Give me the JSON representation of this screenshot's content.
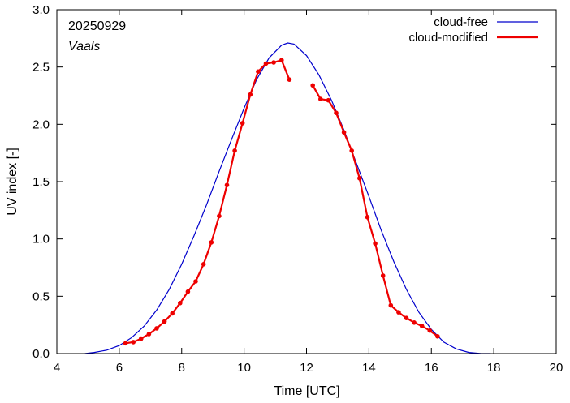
{
  "chart_data": {
    "type": "line",
    "title": "",
    "xlabel": "Time  [UTC]",
    "ylabel": "UV index  [-]",
    "xlim": [
      4,
      20
    ],
    "ylim": [
      0.0,
      3.0
    ],
    "x_ticks": [
      4,
      6,
      8,
      10,
      12,
      14,
      16,
      18,
      20
    ],
    "y_ticks": [
      0.0,
      0.5,
      1.0,
      1.5,
      2.0,
      2.5,
      3.0
    ],
    "x_tick_labels": [
      "4",
      "6",
      "8",
      "10",
      "12",
      "14",
      "16",
      "18",
      "20"
    ],
    "y_tick_labels": [
      "0.0",
      "0.5",
      "1.0",
      "1.5",
      "2.0",
      "2.5",
      "3.0"
    ],
    "annotations": {
      "date": "20250929",
      "site": "Vaals"
    },
    "legend_position": "top-right",
    "series": [
      {
        "name": "cloud-free",
        "color": "#0000cc",
        "markers": false,
        "x": [
          4.9,
          5.2,
          5.6,
          6.0,
          6.4,
          6.8,
          7.2,
          7.6,
          8.0,
          8.4,
          8.8,
          9.2,
          9.6,
          10.0,
          10.4,
          10.8,
          11.2,
          11.4,
          11.6,
          12.0,
          12.4,
          12.8,
          13.2,
          13.6,
          14.0,
          14.4,
          14.8,
          15.2,
          15.6,
          16.0,
          16.4,
          16.8,
          17.2,
          17.6,
          17.9
        ],
        "y": [
          0.0,
          0.01,
          0.03,
          0.07,
          0.14,
          0.24,
          0.38,
          0.56,
          0.78,
          1.03,
          1.3,
          1.59,
          1.87,
          2.14,
          2.39,
          2.58,
          2.69,
          2.71,
          2.7,
          2.6,
          2.43,
          2.21,
          1.95,
          1.66,
          1.37,
          1.07,
          0.8,
          0.56,
          0.36,
          0.21,
          0.1,
          0.04,
          0.01,
          0.0,
          0.0
        ]
      },
      {
        "name": "cloud-modified",
        "color": "#ee0000",
        "markers": true,
        "segments": [
          {
            "x": [
              6.2,
              6.45,
              6.7,
              6.95,
              7.2,
              7.45,
              7.7,
              7.95,
              8.2,
              8.45,
              8.7,
              8.95,
              9.2,
              9.45,
              9.7,
              9.95,
              10.2,
              10.45,
              10.7,
              10.95,
              11.2,
              11.45
            ],
            "y": [
              0.09,
              0.1,
              0.13,
              0.17,
              0.22,
              0.28,
              0.35,
              0.44,
              0.54,
              0.63,
              0.78,
              0.97,
              1.2,
              1.47,
              1.77,
              2.01,
              2.26,
              2.46,
              2.53,
              2.54,
              2.56,
              2.39
            ]
          },
          {
            "x": [
              12.2,
              12.45,
              12.7,
              12.95,
              13.2,
              13.45,
              13.7,
              13.95,
              14.2,
              14.45,
              14.7,
              14.95,
              15.2,
              15.45,
              15.7,
              15.95,
              16.2
            ],
            "y": [
              2.34,
              2.22,
              2.21,
              2.1,
              1.93,
              1.77,
              1.53,
              1.19,
              0.96,
              0.68,
              0.42,
              0.36,
              0.31,
              0.27,
              0.24,
              0.2,
              0.15
            ]
          }
        ]
      }
    ]
  }
}
